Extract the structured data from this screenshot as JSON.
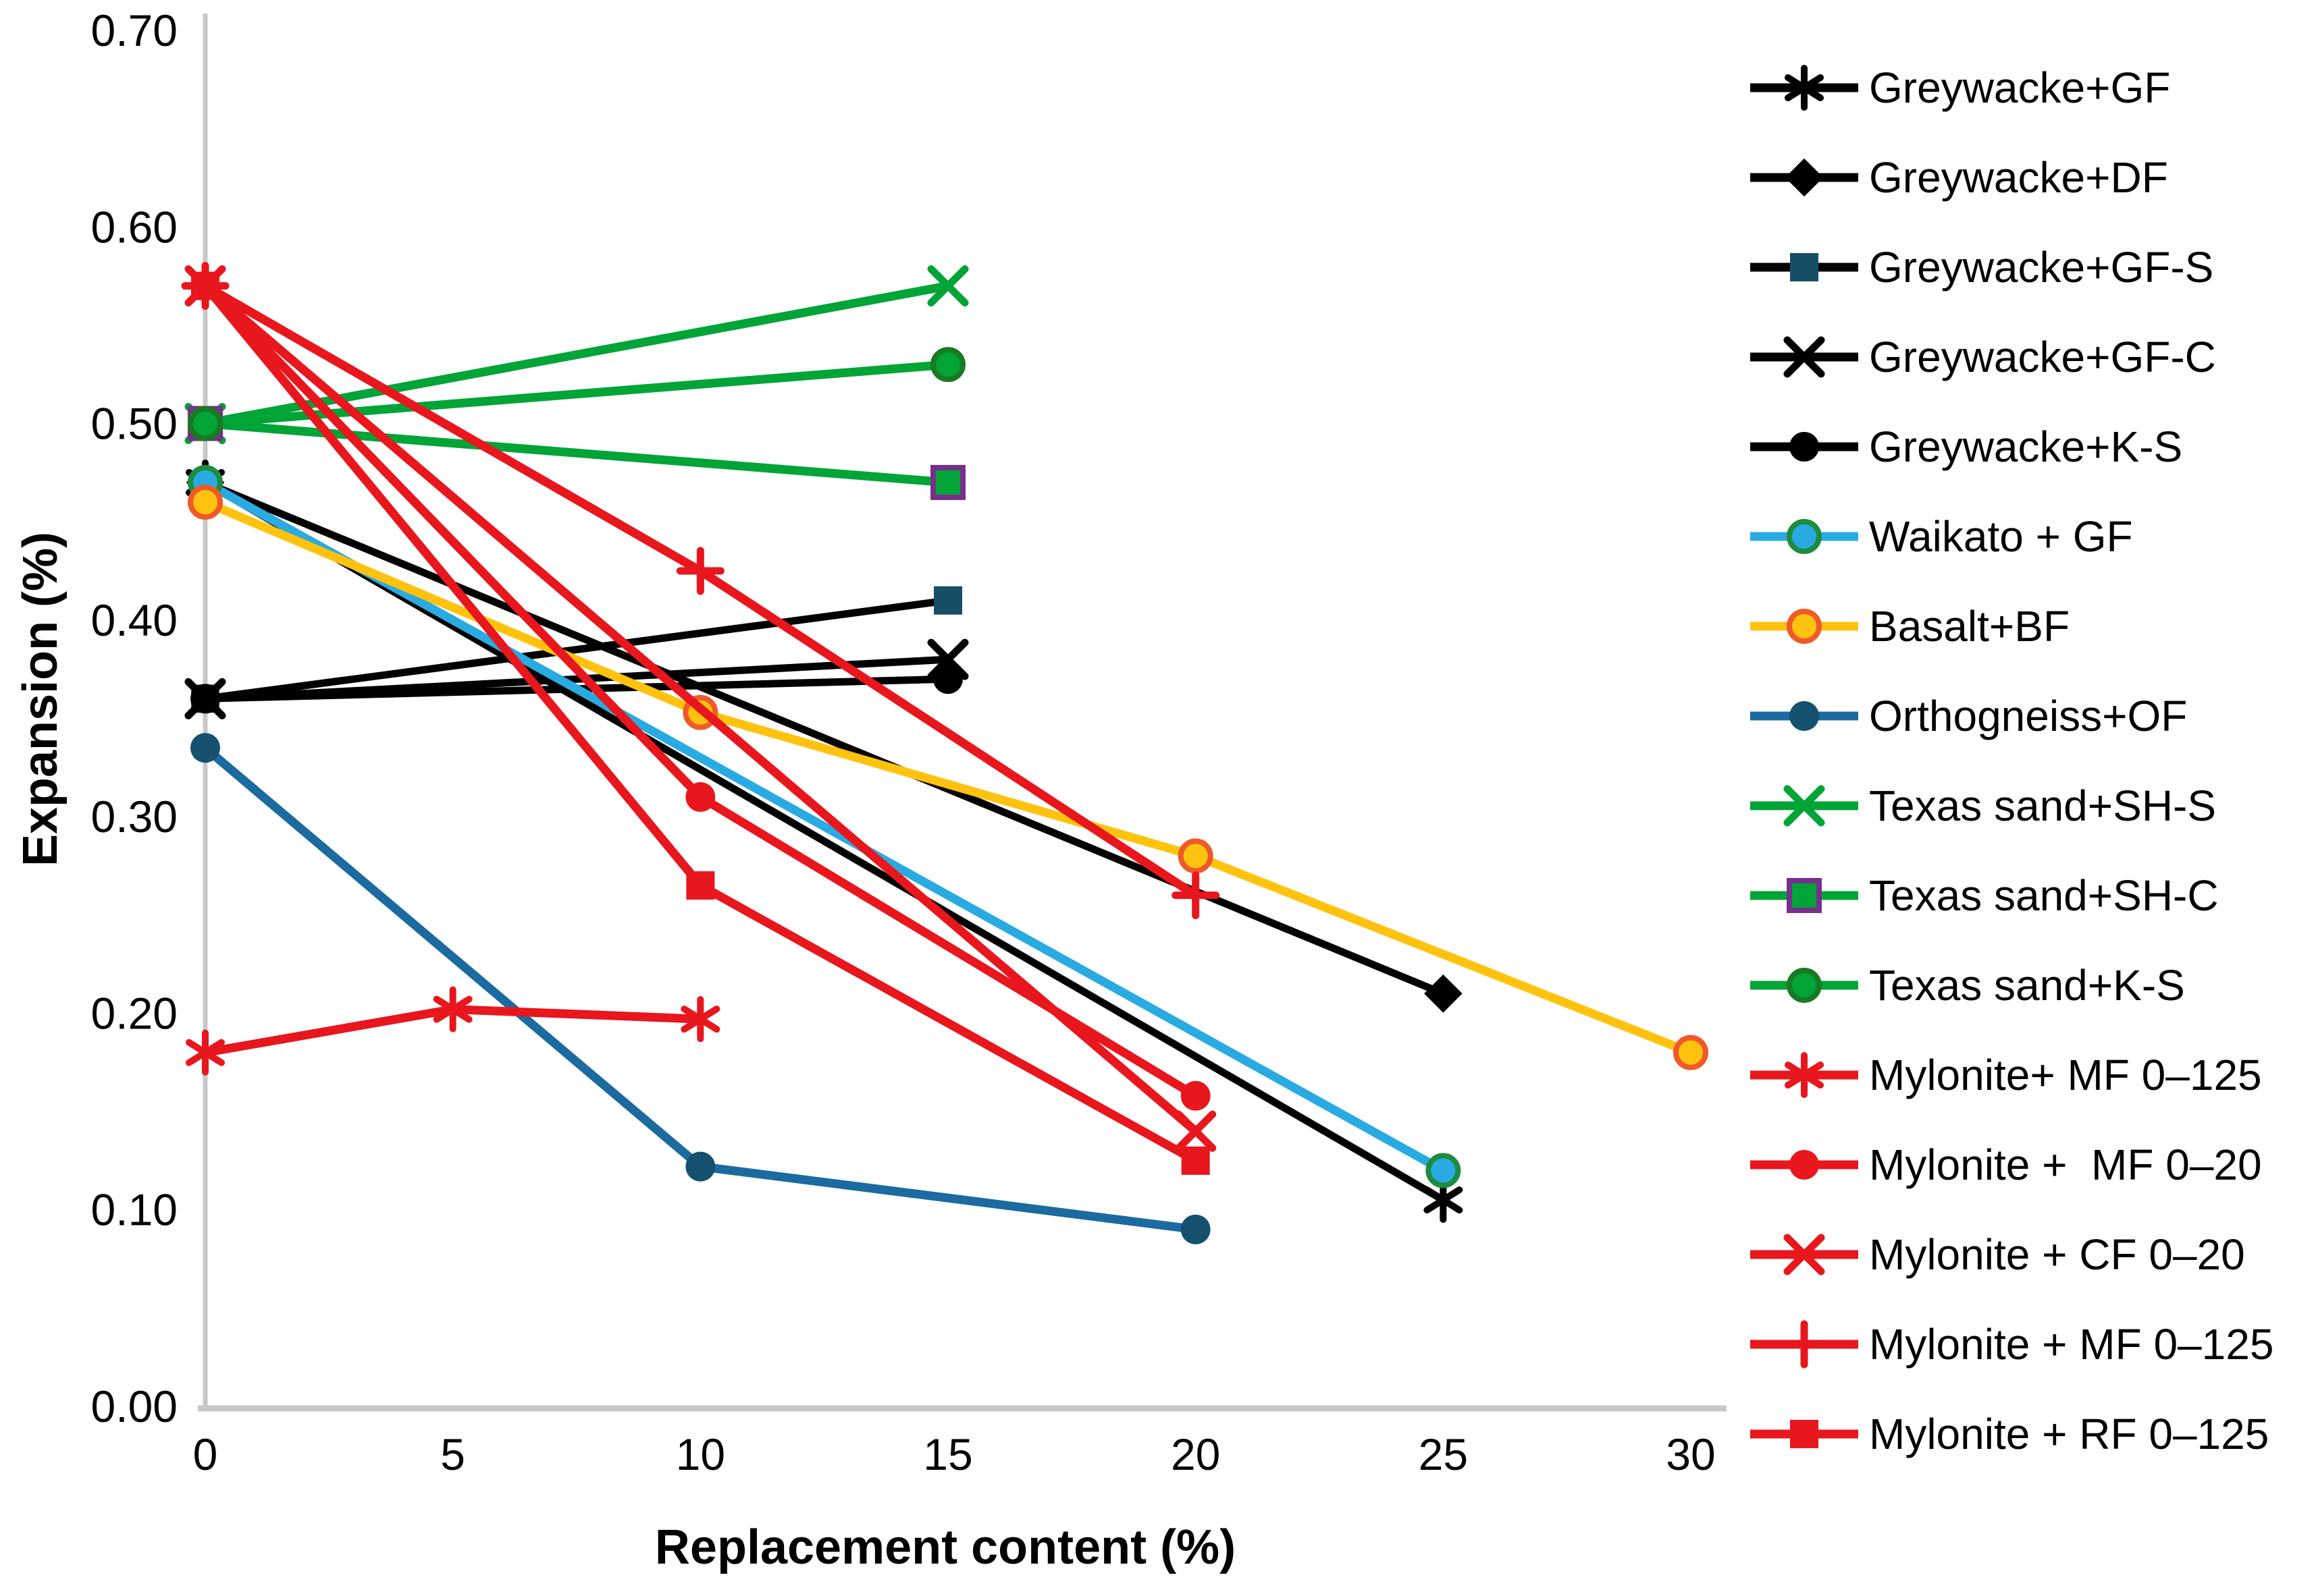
{
  "chart_data": {
    "type": "line",
    "title": "",
    "xlabel": "Replacement content (%)",
    "ylabel": "Expansion (%)",
    "xlim": [
      0,
      30
    ],
    "ylim": [
      0,
      0.7
    ],
    "x_ticks": [
      "0",
      "5",
      "10",
      "15",
      "20",
      "25",
      "30"
    ],
    "y_ticks": [
      "0.00",
      "0.10",
      "0.20",
      "0.30",
      "0.40",
      "0.50",
      "0.60",
      "0.70"
    ],
    "grid": "off",
    "legend_position": "right",
    "axis_color": "#c8c8c8",
    "text_color": "#000000",
    "series": [
      {
        "name": "Greywacke+GF",
        "color": "#000000",
        "marker": "asterisk",
        "points": [
          [
            0,
            0.47
          ],
          [
            25,
            0.105
          ]
        ]
      },
      {
        "name": "Greywacke+DF",
        "color": "#000000",
        "marker": "diamond",
        "marker_fill": "#000000",
        "points": [
          [
            0,
            0.47
          ],
          [
            25,
            0.21
          ]
        ]
      },
      {
        "name": "Greywacke+GF-S",
        "color": "#000000",
        "marker": "square",
        "marker_fill": "#174f66",
        "points": [
          [
            0,
            0.36
          ],
          [
            15,
            0.41
          ]
        ]
      },
      {
        "name": "Greywacke+GF-C",
        "color": "#000000",
        "marker": "x",
        "points": [
          [
            0,
            0.36
          ],
          [
            15,
            0.38
          ]
        ]
      },
      {
        "name": "Greywacke+K-S",
        "color": "#000000",
        "marker": "circle",
        "marker_fill": "#000000",
        "points": [
          [
            0,
            0.36
          ],
          [
            15,
            0.37
          ]
        ]
      },
      {
        "name": "Waikato + GF",
        "color": "#29abe2",
        "marker": "circle",
        "marker_fill": "#29abe2",
        "marker_stroke": "#1e8c3f",
        "points": [
          [
            0,
            0.47
          ],
          [
            25,
            0.12
          ]
        ]
      },
      {
        "name": "Basalt+BF",
        "color": "#ffc20e",
        "marker": "circle",
        "marker_fill": "#ffc20e",
        "marker_stroke": "#ef5a28",
        "points": [
          [
            0,
            0.46
          ],
          [
            10,
            0.353
          ],
          [
            20,
            0.28
          ],
          [
            30,
            0.18
          ]
        ]
      },
      {
        "name": "Orthogneiss+OF",
        "color": "#1b6aa0",
        "marker": "circle",
        "marker_fill": "#15516f",
        "points": [
          [
            0,
            0.335
          ],
          [
            10,
            0.122
          ],
          [
            20,
            0.09
          ]
        ]
      },
      {
        "name": "Texas sand+SH-S",
        "color": "#00a437",
        "marker": "x",
        "points": [
          [
            0,
            0.5
          ],
          [
            15,
            0.57
          ]
        ]
      },
      {
        "name": "Texas sand+SH-C",
        "color": "#00a437",
        "marker": "square",
        "marker_fill": "#00a437",
        "marker_stroke": "#76308a",
        "points": [
          [
            0,
            0.5
          ],
          [
            15,
            0.47
          ]
        ]
      },
      {
        "name": "Texas sand+K-S",
        "color": "#00a437",
        "marker": "circle",
        "marker_fill": "#00a437",
        "marker_stroke": "#187a22",
        "points": [
          [
            0,
            0.5
          ],
          [
            15,
            0.53
          ]
        ]
      },
      {
        "name": "Mylonite+ MF 0–125",
        "color": "#e8161d",
        "marker": "asterisk",
        "points": [
          [
            0,
            0.18
          ],
          [
            5,
            0.202
          ],
          [
            10,
            0.197
          ]
        ]
      },
      {
        "name": "Mylonite +  MF 0–20",
        "color": "#e8161d",
        "marker": "circle",
        "marker_fill": "#e8161d",
        "points": [
          [
            0,
            0.57
          ],
          [
            10,
            0.31
          ],
          [
            20,
            0.158
          ]
        ]
      },
      {
        "name": "Mylonite + CF 0–20",
        "color": "#e8161d",
        "marker": "x",
        "points": [
          [
            0,
            0.57
          ],
          [
            20,
            0.14
          ]
        ]
      },
      {
        "name": "Mylonite + MF 0–125",
        "color": "#e8161d",
        "marker": "plus",
        "points": [
          [
            0,
            0.57
          ],
          [
            10,
            0.425
          ],
          [
            20,
            0.26
          ]
        ]
      },
      {
        "name": "Mylonite + RF 0–125",
        "color": "#e8161d",
        "marker": "square",
        "marker_fill": "#e8161d",
        "points": [
          [
            0,
            0.57
          ],
          [
            10,
            0.265
          ],
          [
            20,
            0.125
          ]
        ]
      }
    ]
  }
}
